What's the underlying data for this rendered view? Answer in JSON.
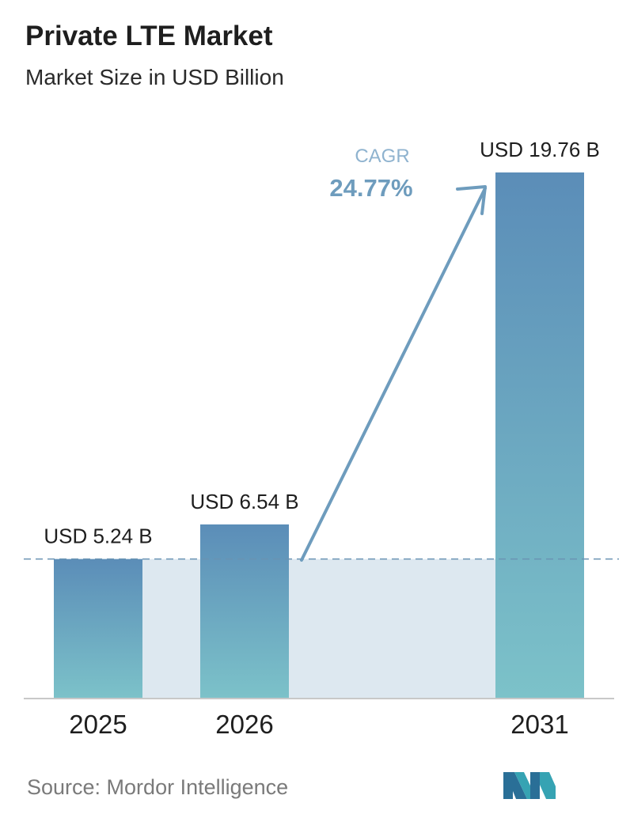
{
  "header": {
    "title": "Private LTE Market",
    "subtitle": "Market Size in USD Billion"
  },
  "chart_data": {
    "type": "bar",
    "categories": [
      "2025",
      "2026",
      "2031"
    ],
    "values": [
      5.24,
      6.54,
      19.76
    ],
    "value_labels": [
      "USD 5.24 B",
      "USD 6.54 B",
      "USD 19.76 B"
    ],
    "title": "Private LTE Market",
    "subtitle": "Market Size in USD Billion",
    "xlabel": "",
    "ylabel": "",
    "annotation": {
      "label": "CAGR",
      "value": "24.77%"
    },
    "grid": false,
    "colors": {
      "bar_top": "#5b8db8",
      "bar_bottom": "#7cc2c9",
      "band": "#dde8f0",
      "baseline": "#c8c8c8",
      "reference_line": "#6a93b3",
      "arrow": "#6e9cbd"
    }
  },
  "footer": {
    "source": "Source: Mordor Intelligence",
    "logo_icon": "mordor-intelligence-logo-icon"
  }
}
